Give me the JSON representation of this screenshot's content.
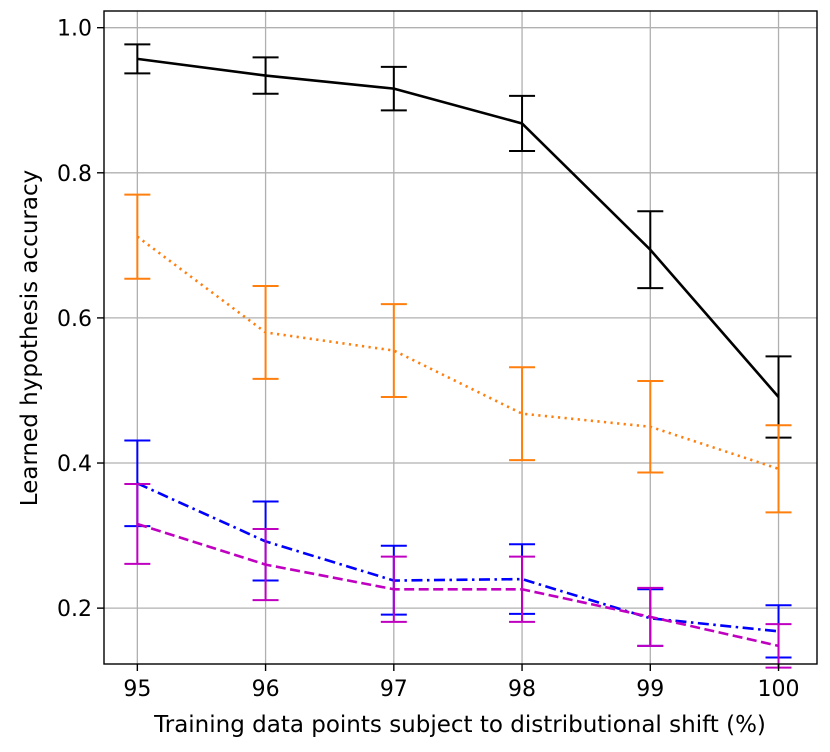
{
  "chart_data": {
    "type": "line",
    "title": "",
    "xlabel": "Training data points subject to distributional shift (%)",
    "ylabel": "Learned hypothesis accuracy",
    "x": [
      95,
      96,
      97,
      98,
      99,
      100
    ],
    "x_tick_labels": [
      "95",
      "96",
      "97",
      "98",
      "99",
      "100"
    ],
    "y_ticks": [
      0.2,
      0.4,
      0.6,
      0.8,
      1.0
    ],
    "y_tick_labels": [
      "0.2",
      "0.4",
      "0.6",
      "0.8",
      "1.0"
    ],
    "xlim": [
      94.74,
      100.3
    ],
    "ylim": [
      0.123,
      1.023
    ],
    "grid": true,
    "series": [
      {
        "color": "#000000",
        "linestyle": "solid",
        "values": [
          0.957,
          0.934,
          0.916,
          0.868,
          0.694,
          0.491
        ],
        "err_low": [
          0.937,
          0.909,
          0.886,
          0.83,
          0.641,
          0.435
        ],
        "err_high": [
          0.977,
          0.959,
          0.946,
          0.906,
          0.747,
          0.547
        ]
      },
      {
        "color": "#ff7f0e",
        "linestyle": "dotted",
        "values": [
          0.712,
          0.58,
          0.555,
          0.468,
          0.45,
          0.392
        ],
        "err_low": [
          0.654,
          0.516,
          0.491,
          0.404,
          0.387,
          0.332
        ],
        "err_high": [
          0.77,
          0.644,
          0.619,
          0.532,
          0.513,
          0.452
        ]
      },
      {
        "color": "#0000ff",
        "linestyle": "dashdot",
        "values": [
          0.372,
          0.292,
          0.238,
          0.24,
          0.186,
          0.168
        ],
        "err_low": [
          0.313,
          0.238,
          0.191,
          0.192,
          0.148,
          0.132
        ],
        "err_high": [
          0.431,
          0.347,
          0.286,
          0.288,
          0.226,
          0.204
        ]
      },
      {
        "color": "#c000c0",
        "linestyle": "dashed",
        "values": [
          0.316,
          0.26,
          0.226,
          0.226,
          0.188,
          0.148
        ],
        "err_low": [
          0.261,
          0.211,
          0.181,
          0.181,
          0.148,
          0.118
        ],
        "err_high": [
          0.371,
          0.309,
          0.271,
          0.271,
          0.228,
          0.178
        ]
      }
    ]
  }
}
